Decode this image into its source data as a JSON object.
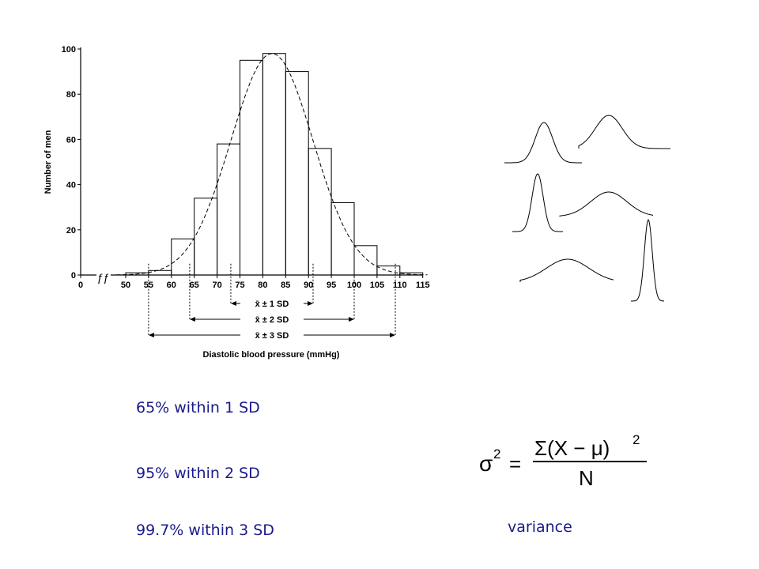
{
  "chart_data": {
    "type": "bar",
    "bin_edges": [
      50,
      55,
      60,
      65,
      70,
      75,
      80,
      85,
      90,
      95,
      100,
      105,
      110
    ],
    "values": [
      1,
      2,
      16,
      34,
      58,
      95,
      98,
      90,
      56,
      32,
      13,
      4,
      1
    ],
    "fit": "normal",
    "mean": 82,
    "sd": 9,
    "xticks": [
      "0",
      "50",
      "55",
      "60",
      "65",
      "70",
      "75",
      "80",
      "85",
      "90",
      "95",
      "100",
      "105",
      "110",
      "115"
    ],
    "yticks": [
      "0",
      "20",
      "40",
      "60",
      "80",
      "100"
    ],
    "ylabel": "Number of men",
    "xlabel": "Diastolic blood pressure (mmHg)",
    "axis_break_mark": "ƒƒ",
    "ylim": [
      0,
      100
    ],
    "sd_brackets": [
      {
        "k": 1,
        "label": "x̄ ± 1 SD"
      },
      {
        "k": 2,
        "label": "x̄ ± 2 SD"
      },
      {
        "k": 3,
        "label": "x̄ ± 3 SD"
      }
    ]
  },
  "notes": {
    "one_sd": "65% within 1 SD",
    "two_sd": "95% within 2 SD",
    "three_sd": "99.7% within 3 SD"
  },
  "formula": {
    "lhs": "σ",
    "exp": "2",
    "equals": "=",
    "numerator": "Σ(X  −  μ)",
    "num_exp": "2",
    "denominator": "N"
  },
  "variance_label": "variance"
}
